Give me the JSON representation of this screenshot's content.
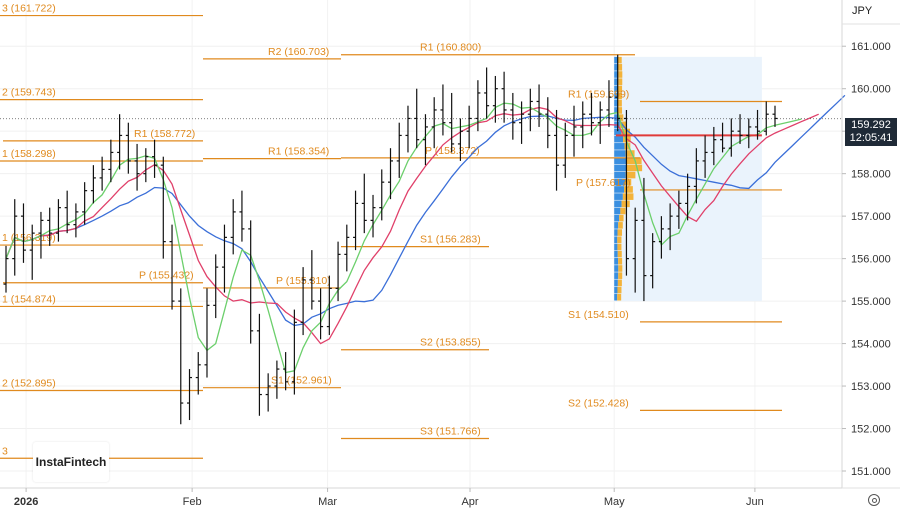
{
  "toolbar": {
    "currency": "JPY"
  },
  "logo": {
    "text": "InstaFintech"
  },
  "last_price": {
    "value": "159.292",
    "time": "12:05:41"
  },
  "colors": {
    "pivot": "#e08a1e",
    "ma_fast": "#6ccf6c",
    "ma_mid": "#e0406a",
    "ma_slow": "#3b6fd8",
    "last_line": "#e03a3a",
    "profile_blue": "#3a8fe0",
    "profile_orange": "#f3b33a",
    "profile_bg": "#eaf3fc",
    "bar": "#111111"
  },
  "chart_data": {
    "type": "ohlc",
    "ylim": [
      150.6,
      161.9
    ],
    "y_ticks": [
      "151.000",
      "152.000",
      "153.000",
      "154.000",
      "155.000",
      "156.000",
      "157.000",
      "158.000",
      "159.000",
      "160.000",
      "161.000"
    ],
    "x_ticks": [
      "2026",
      "Feb",
      "Mar",
      "Apr",
      "May",
      "Jun"
    ],
    "pivot_levels": [
      {
        "label": "3 (161.722)",
        "value": 161.722,
        "period": "jan"
      },
      {
        "label": "2 (159.743)",
        "value": 159.743,
        "period": "jan"
      },
      {
        "label": "R1 (158.772)",
        "value": 158.772,
        "period": "jan"
      },
      {
        "label": "1 (158.298)",
        "value": 158.298,
        "period": "jan"
      },
      {
        "label": "1 (156.319)",
        "value": 156.319,
        "period": "jan"
      },
      {
        "label": "P (155.432)",
        "value": 155.432,
        "period": "jan"
      },
      {
        "label": "1 (154.874)",
        "value": 154.874,
        "period": "jan"
      },
      {
        "label": "2 (152.895)",
        "value": 152.895,
        "period": "jan"
      },
      {
        "label": "3",
        "value": 151.3,
        "period": "jan"
      },
      {
        "label": "R2 (160.703)",
        "value": 160.703,
        "period": "feb"
      },
      {
        "label": "R1 (158.354)",
        "value": 158.354,
        "period": "feb"
      },
      {
        "label": "P (155.310)",
        "value": 155.31,
        "period": "feb"
      },
      {
        "label": "S1 (152.961)",
        "value": 152.961,
        "period": "feb"
      },
      {
        "label": "R1 (160.800)",
        "value": 160.8,
        "period": "mar"
      },
      {
        "label": "P (158.372)",
        "value": 158.372,
        "period": "mar"
      },
      {
        "label": "S1 (156.283)",
        "value": 156.283,
        "period": "mar"
      },
      {
        "label": "S2 (153.855)",
        "value": 153.855,
        "period": "mar"
      },
      {
        "label": "S3 (151.766)",
        "value": 151.766,
        "period": "mar"
      },
      {
        "label": "R1 (159.699)",
        "value": 159.699,
        "period": "may"
      },
      {
        "label": "P (157.617)",
        "value": 157.617,
        "period": "may"
      },
      {
        "label": "S1 (154.510)",
        "value": 154.51,
        "period": "may"
      },
      {
        "label": "S2 (152.428)",
        "value": 152.428,
        "period": "may"
      }
    ],
    "last_price": 159.292,
    "current_level": 158.9,
    "volume_profile": {
      "price_range": [
        155.0,
        160.75
      ]
    },
    "ohlc": [
      [
        155.4,
        156.3,
        155.2,
        156.0
      ],
      [
        156.0,
        157.4,
        155.6,
        157.0
      ],
      [
        157.0,
        157.3,
        155.9,
        156.2
      ],
      [
        156.2,
        156.8,
        155.5,
        156.6
      ],
      [
        156.6,
        157.1,
        156.0,
        156.9
      ],
      [
        156.9,
        157.2,
        156.3,
        156.6
      ],
      [
        156.6,
        157.4,
        156.4,
        157.2
      ],
      [
        157.2,
        157.6,
        156.6,
        156.8
      ],
      [
        156.8,
        157.3,
        156.5,
        157.1
      ],
      [
        157.1,
        157.8,
        156.8,
        157.6
      ],
      [
        157.6,
        158.2,
        157.3,
        157.9
      ],
      [
        157.9,
        158.4,
        157.6,
        158.1
      ],
      [
        158.1,
        158.8,
        157.8,
        158.5
      ],
      [
        158.5,
        159.4,
        158.1,
        158.9
      ],
      [
        158.9,
        159.2,
        158.0,
        158.3
      ],
      [
        158.3,
        158.7,
        157.6,
        158.0
      ],
      [
        158.0,
        158.6,
        157.8,
        158.4
      ],
      [
        158.4,
        158.8,
        157.9,
        158.2
      ],
      [
        158.2,
        158.4,
        156.0,
        156.4
      ],
      [
        156.4,
        156.8,
        154.8,
        155.0
      ],
      [
        155.0,
        155.3,
        152.1,
        152.6
      ],
      [
        152.6,
        153.4,
        152.2,
        153.2
      ],
      [
        153.2,
        153.8,
        152.8,
        153.5
      ],
      [
        153.5,
        155.3,
        153.2,
        154.9
      ],
      [
        154.9,
        156.1,
        154.6,
        155.8
      ],
      [
        155.8,
        156.8,
        155.2,
        156.5
      ],
      [
        156.5,
        157.4,
        156.1,
        157.1
      ],
      [
        157.1,
        157.6,
        156.4,
        156.7
      ],
      [
        156.7,
        156.9,
        154.0,
        154.3
      ],
      [
        154.3,
        154.7,
        152.3,
        152.8
      ],
      [
        152.8,
        153.3,
        152.4,
        153.0
      ],
      [
        153.0,
        153.6,
        152.7,
        153.4
      ],
      [
        153.4,
        153.8,
        152.9,
        153.1
      ],
      [
        153.1,
        154.8,
        152.8,
        154.5
      ],
      [
        154.5,
        155.8,
        154.2,
        155.5
      ],
      [
        155.5,
        156.2,
        154.8,
        155.0
      ],
      [
        155.0,
        155.3,
        154.1,
        154.4
      ],
      [
        154.4,
        155.6,
        154.2,
        155.3
      ],
      [
        155.3,
        156.4,
        155.0,
        156.1
      ],
      [
        156.1,
        156.8,
        155.7,
        156.5
      ],
      [
        156.5,
        157.6,
        156.2,
        157.3
      ],
      [
        157.3,
        158.0,
        156.6,
        156.9
      ],
      [
        156.9,
        157.5,
        156.5,
        157.2
      ],
      [
        157.2,
        158.1,
        156.9,
        157.8
      ],
      [
        157.8,
        158.6,
        157.4,
        158.3
      ],
      [
        158.3,
        159.2,
        157.9,
        158.9
      ],
      [
        158.9,
        159.6,
        158.5,
        159.3
      ],
      [
        159.3,
        160.0,
        158.6,
        158.8
      ],
      [
        158.8,
        159.4,
        158.2,
        159.1
      ],
      [
        159.1,
        159.8,
        158.6,
        159.5
      ],
      [
        159.5,
        160.1,
        158.9,
        159.2
      ],
      [
        159.2,
        159.9,
        158.5,
        158.7
      ],
      [
        158.7,
        159.3,
        158.3,
        159.0
      ],
      [
        159.0,
        159.6,
        158.6,
        159.3
      ],
      [
        159.3,
        160.2,
        159.0,
        159.9
      ],
      [
        159.9,
        160.5,
        159.3,
        159.6
      ],
      [
        159.6,
        160.3,
        159.2,
        160.0
      ],
      [
        160.0,
        160.4,
        159.2,
        159.5
      ],
      [
        159.5,
        159.9,
        158.8,
        159.2
      ],
      [
        159.2,
        159.7,
        158.7,
        159.4
      ],
      [
        159.4,
        160.0,
        159.0,
        159.7
      ],
      [
        159.7,
        160.1,
        159.1,
        159.4
      ],
      [
        159.4,
        159.8,
        158.6,
        158.9
      ],
      [
        158.9,
        159.5,
        157.6,
        158.2
      ],
      [
        158.2,
        159.2,
        157.9,
        158.9
      ],
      [
        158.9,
        159.6,
        158.4,
        159.1
      ],
      [
        159.1,
        159.7,
        158.6,
        159.4
      ],
      [
        159.4,
        159.9,
        158.9,
        159.2
      ],
      [
        159.2,
        159.7,
        158.7,
        159.5
      ],
      [
        159.5,
        160.2,
        159.1,
        159.8
      ],
      [
        159.8,
        160.8,
        159.0,
        159.3
      ],
      [
        159.3,
        159.5,
        155.6,
        156.0
      ],
      [
        156.0,
        157.2,
        155.2,
        156.9
      ],
      [
        156.9,
        157.9,
        155.0,
        155.6
      ],
      [
        155.6,
        156.6,
        155.3,
        156.4
      ],
      [
        156.4,
        157.0,
        156.0,
        156.7
      ],
      [
        156.7,
        157.3,
        156.2,
        157.0
      ],
      [
        157.0,
        157.6,
        156.7,
        157.3
      ],
      [
        157.3,
        158.0,
        156.9,
        157.7
      ],
      [
        157.7,
        158.6,
        157.3,
        158.3
      ],
      [
        158.3,
        158.9,
        157.9,
        158.5
      ],
      [
        158.5,
        159.1,
        158.2,
        158.8
      ],
      [
        158.8,
        159.2,
        158.5,
        158.6
      ],
      [
        158.6,
        159.3,
        158.4,
        159.0
      ],
      [
        159.0,
        159.4,
        158.7,
        158.9
      ],
      [
        158.9,
        159.3,
        158.6,
        159.1
      ],
      [
        159.1,
        159.5,
        158.8,
        159.0
      ],
      [
        159.0,
        159.7,
        158.9,
        159.4
      ],
      [
        159.4,
        159.6,
        159.1,
        159.3
      ]
    ]
  }
}
